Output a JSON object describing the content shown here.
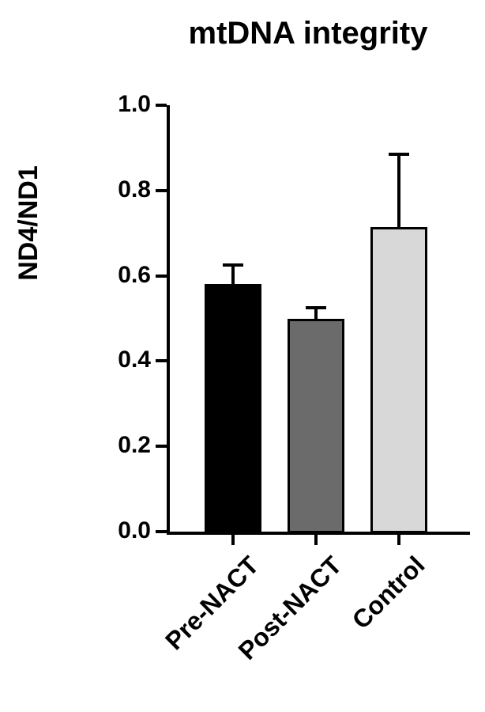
{
  "chart_data": {
    "type": "bar",
    "title": "mtDNA integrity",
    "xlabel": "",
    "ylabel": "ND4/ND1",
    "categories": [
      "Pre-NACT",
      "Post-NACT",
      "Control"
    ],
    "values": [
      0.58,
      0.5,
      0.715
    ],
    "errors": [
      0.045,
      0.025,
      0.17
    ],
    "error_type": "upper SD whisker with cap",
    "bar_colors": [
      "#000000",
      "#6b6b6b",
      "#d8d8d8"
    ],
    "bar_border_color": "#000000",
    "axis_color": "#000000",
    "ylim": [
      0.0,
      1.0
    ],
    "yticks": [
      0.0,
      0.2,
      0.4,
      0.6,
      0.8,
      1.0
    ],
    "grid": false,
    "legend": "none",
    "background": "#ffffff"
  }
}
